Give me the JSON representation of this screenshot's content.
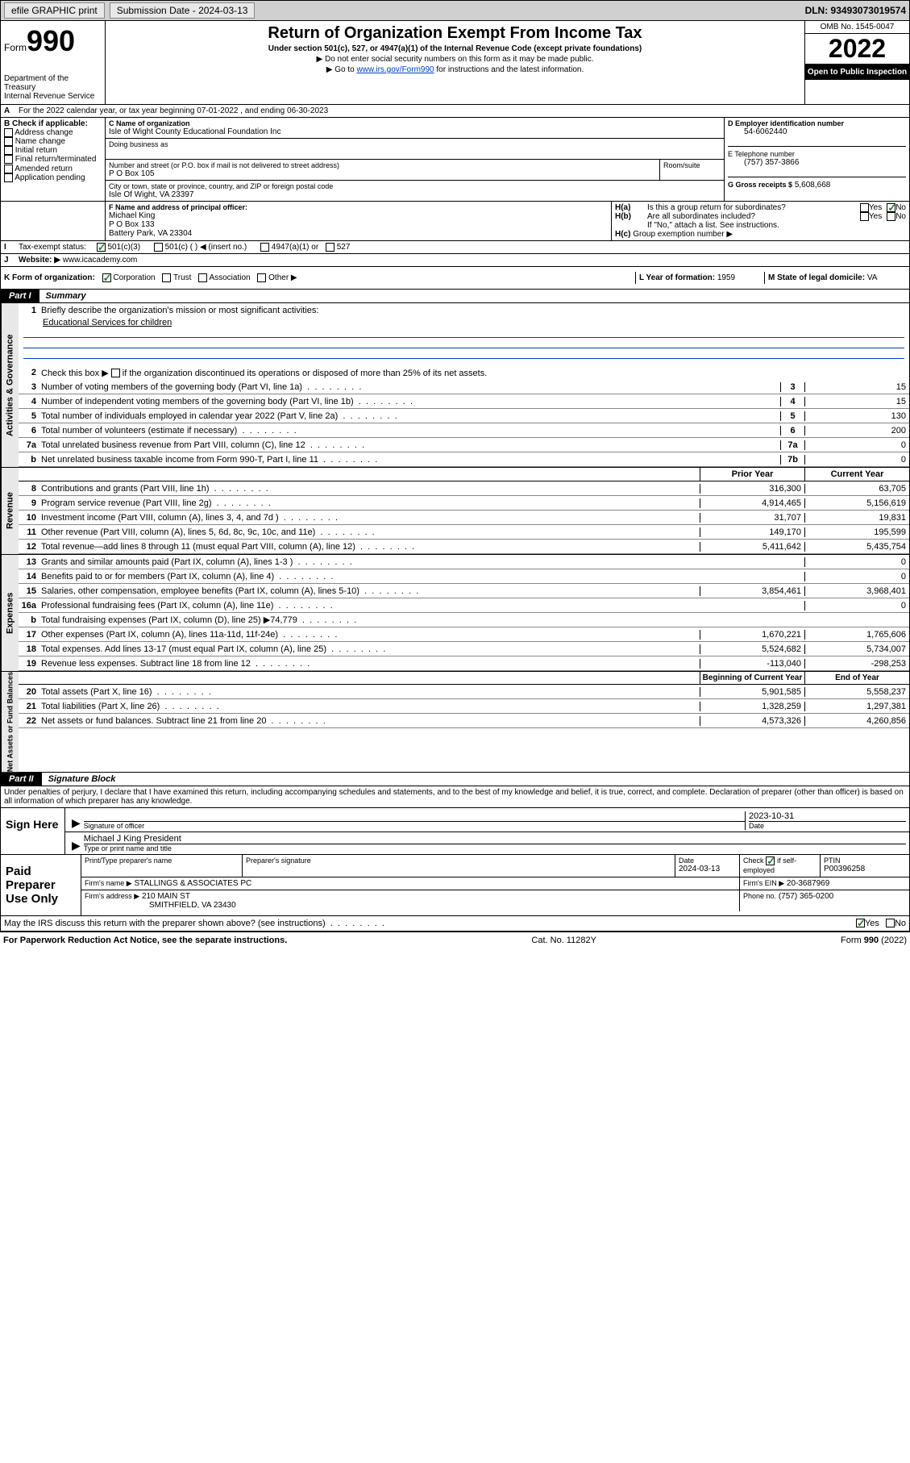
{
  "topbar": {
    "efile": "efile GRAPHIC print",
    "sub_label": "Submission Date - 2024-03-13",
    "dln": "DLN: 93493073019574"
  },
  "header": {
    "form_word": "Form",
    "form_num": "990",
    "dept": "Department of the Treasury",
    "irs": "Internal Revenue Service",
    "title": "Return of Organization Exempt From Income Tax",
    "sub1": "Under section 501(c), 527, or 4947(a)(1) of the Internal Revenue Code (except private foundations)",
    "sub2": "▶ Do not enter social security numbers on this form as it may be made public.",
    "sub3_pre": "▶ Go to ",
    "sub3_link": "www.irs.gov/Form990",
    "sub3_post": " for instructions and the latest information.",
    "omb": "OMB No. 1545-0047",
    "year": "2022",
    "open_pub": "Open to Public Inspection"
  },
  "sectionA": {
    "line": "For the 2022 calendar year, or tax year beginning 07-01-2022   , and ending 06-30-2023"
  },
  "sectionB": {
    "label": "B Check if applicable:",
    "opts": [
      "Address change",
      "Name change",
      "Initial return",
      "Final return/terminated",
      "Amended return",
      "Application pending"
    ]
  },
  "sectionC": {
    "label": "C Name of organization",
    "name": "Isle of Wight County Educational Foundation Inc",
    "dba_label": "Doing business as",
    "dba": "",
    "addr_label": "Number and street (or P.O. box if mail is not delivered to street address)",
    "room_label": "Room/suite",
    "addr": "P O Box 105",
    "city_label": "City or town, state or province, country, and ZIP or foreign postal code",
    "city": "Isle Of Wight, VA  23397"
  },
  "sectionD": {
    "label": "D Employer identification number",
    "ein": "54-6062440"
  },
  "sectionE": {
    "label": "E Telephone number",
    "phone": "(757) 357-3866"
  },
  "sectionG": {
    "label": "G Gross receipts $",
    "amount": "5,608,668"
  },
  "sectionF": {
    "label": "F Name and address of principal officer:",
    "name": "Michael King",
    "addr1": "P O Box 133",
    "addr2": "Battery Park, VA  23304"
  },
  "sectionH": {
    "ha": "Is this a group return for subordinates?",
    "hb": "Are all subordinates included?",
    "hb_note": "If \"No,\" attach a list. See instructions.",
    "hc": "Group exemption number ▶",
    "yes": "Yes",
    "no": "No"
  },
  "sectionI": {
    "label": "Tax-exempt status:",
    "opt1": "501(c)(3)",
    "opt2": "501(c) (  ) ◀ (insert no.)",
    "opt3": "4947(a)(1) or",
    "opt4": "527"
  },
  "sectionJ": {
    "label": "Website: ▶",
    "url": "www.icacademy.com"
  },
  "sectionK": {
    "label": "K Form of organization:",
    "opts": [
      "Corporation",
      "Trust",
      "Association",
      "Other ▶"
    ]
  },
  "sectionL": {
    "label": "L Year of formation:",
    "year": "1959"
  },
  "sectionM": {
    "label": "M State of legal domicile:",
    "state": "VA"
  },
  "part1": {
    "num": "Part I",
    "title": "Summary",
    "vert_labels": {
      "gov": "Activities & Governance",
      "rev": "Revenue",
      "exp": "Expenses",
      "net": "Net Assets or Fund Balances"
    },
    "q1": "Briefly describe the organization's mission or most significant activities:",
    "mission": "Educational Services for children",
    "q2": "Check this box ▶    if the organization discontinued its operations or disposed of more than 25% of its net assets.",
    "lines_gov": [
      {
        "n": "3",
        "t": "Number of voting members of the governing body (Part VI, line 1a)",
        "b": "3",
        "v": "15"
      },
      {
        "n": "4",
        "t": "Number of independent voting members of the governing body (Part VI, line 1b)",
        "b": "4",
        "v": "15"
      },
      {
        "n": "5",
        "t": "Total number of individuals employed in calendar year 2022 (Part V, line 2a)",
        "b": "5",
        "v": "130"
      },
      {
        "n": "6",
        "t": "Total number of volunteers (estimate if necessary)",
        "b": "6",
        "v": "200"
      },
      {
        "n": "7a",
        "t": "Total unrelated business revenue from Part VIII, column (C), line 12",
        "b": "7a",
        "v": "0"
      },
      {
        "n": "b",
        "t": "Net unrelated business taxable income from Form 990-T, Part I, line 11",
        "b": "7b",
        "v": "0"
      }
    ],
    "col_prior": "Prior Year",
    "col_current": "Current Year",
    "lines_rev": [
      {
        "n": "8",
        "t": "Contributions and grants (Part VIII, line 1h)",
        "p": "316,300",
        "c": "63,705"
      },
      {
        "n": "9",
        "t": "Program service revenue (Part VIII, line 2g)",
        "p": "4,914,465",
        "c": "5,156,619"
      },
      {
        "n": "10",
        "t": "Investment income (Part VIII, column (A), lines 3, 4, and 7d )",
        "p": "31,707",
        "c": "19,831"
      },
      {
        "n": "11",
        "t": "Other revenue (Part VIII, column (A), lines 5, 6d, 8c, 9c, 10c, and 11e)",
        "p": "149,170",
        "c": "195,599"
      },
      {
        "n": "12",
        "t": "Total revenue—add lines 8 through 11 (must equal Part VIII, column (A), line 12)",
        "p": "5,411,642",
        "c": "5,435,754"
      }
    ],
    "lines_exp": [
      {
        "n": "13",
        "t": "Grants and similar amounts paid (Part IX, column (A), lines 1-3 )",
        "p": "",
        "c": "0"
      },
      {
        "n": "14",
        "t": "Benefits paid to or for members (Part IX, column (A), line 4)",
        "p": "",
        "c": "0"
      },
      {
        "n": "15",
        "t": "Salaries, other compensation, employee benefits (Part IX, column (A), lines 5-10)",
        "p": "3,854,461",
        "c": "3,968,401"
      },
      {
        "n": "16a",
        "t": "Professional fundraising fees (Part IX, column (A), line 11e)",
        "p": "",
        "c": "0"
      },
      {
        "n": "b",
        "t": "Total fundraising expenses (Part IX, column (D), line 25) ▶74,779",
        "p": "gray",
        "c": "gray"
      },
      {
        "n": "17",
        "t": "Other expenses (Part IX, column (A), lines 11a-11d, 11f-24e)",
        "p": "1,670,221",
        "c": "1,765,606"
      },
      {
        "n": "18",
        "t": "Total expenses. Add lines 13-17 (must equal Part IX, column (A), line 25)",
        "p": "5,524,682",
        "c": "5,734,007"
      },
      {
        "n": "19",
        "t": "Revenue less expenses. Subtract line 18 from line 12",
        "p": "-113,040",
        "c": "-298,253"
      }
    ],
    "col_begin": "Beginning of Current Year",
    "col_end": "End of Year",
    "lines_net": [
      {
        "n": "20",
        "t": "Total assets (Part X, line 16)",
        "p": "5,901,585",
        "c": "5,558,237"
      },
      {
        "n": "21",
        "t": "Total liabilities (Part X, line 26)",
        "p": "1,328,259",
        "c": "1,297,381"
      },
      {
        "n": "22",
        "t": "Net assets or fund balances. Subtract line 21 from line 20",
        "p": "4,573,326",
        "c": "4,260,856"
      }
    ]
  },
  "part2": {
    "num": "Part II",
    "title": "Signature Block",
    "penalty": "Under penalties of perjury, I declare that I have examined this return, including accompanying schedules and statements, and to the best of my knowledge and belief, it is true, correct, and complete. Declaration of preparer (other than officer) is based on all information of which preparer has any knowledge.",
    "sign_here": "Sign Here",
    "sig_officer": "Signature of officer",
    "date_label": "Date",
    "sig_date": "2023-10-31",
    "officer_name": "Michael J King President",
    "type_name": "Type or print name and title",
    "paid": "Paid Preparer Use Only",
    "prep_name_label": "Print/Type preparer's name",
    "prep_sig_label": "Preparer's signature",
    "prep_date_label": "Date",
    "prep_date": "2024-03-13",
    "check_label": "Check",
    "check_if": "if self-employed",
    "ptin_label": "PTIN",
    "ptin": "P00396258",
    "firm_name_label": "Firm's name    ▶",
    "firm_name": "STALLINGS & ASSOCIATES PC",
    "firm_ein_label": "Firm's EIN ▶",
    "firm_ein": "20-3687969",
    "firm_addr_label": "Firm's address ▶",
    "firm_addr1": "210 MAIN ST",
    "firm_addr2": "SMITHFIELD, VA  23430",
    "firm_phone_label": "Phone no.",
    "firm_phone": "(757) 365-0200",
    "discuss": "May the IRS discuss this return with the preparer shown above? (see instructions)"
  },
  "footer": {
    "pra": "For Paperwork Reduction Act Notice, see the separate instructions.",
    "cat": "Cat. No. 11282Y",
    "form": "Form 990 (2022)"
  }
}
